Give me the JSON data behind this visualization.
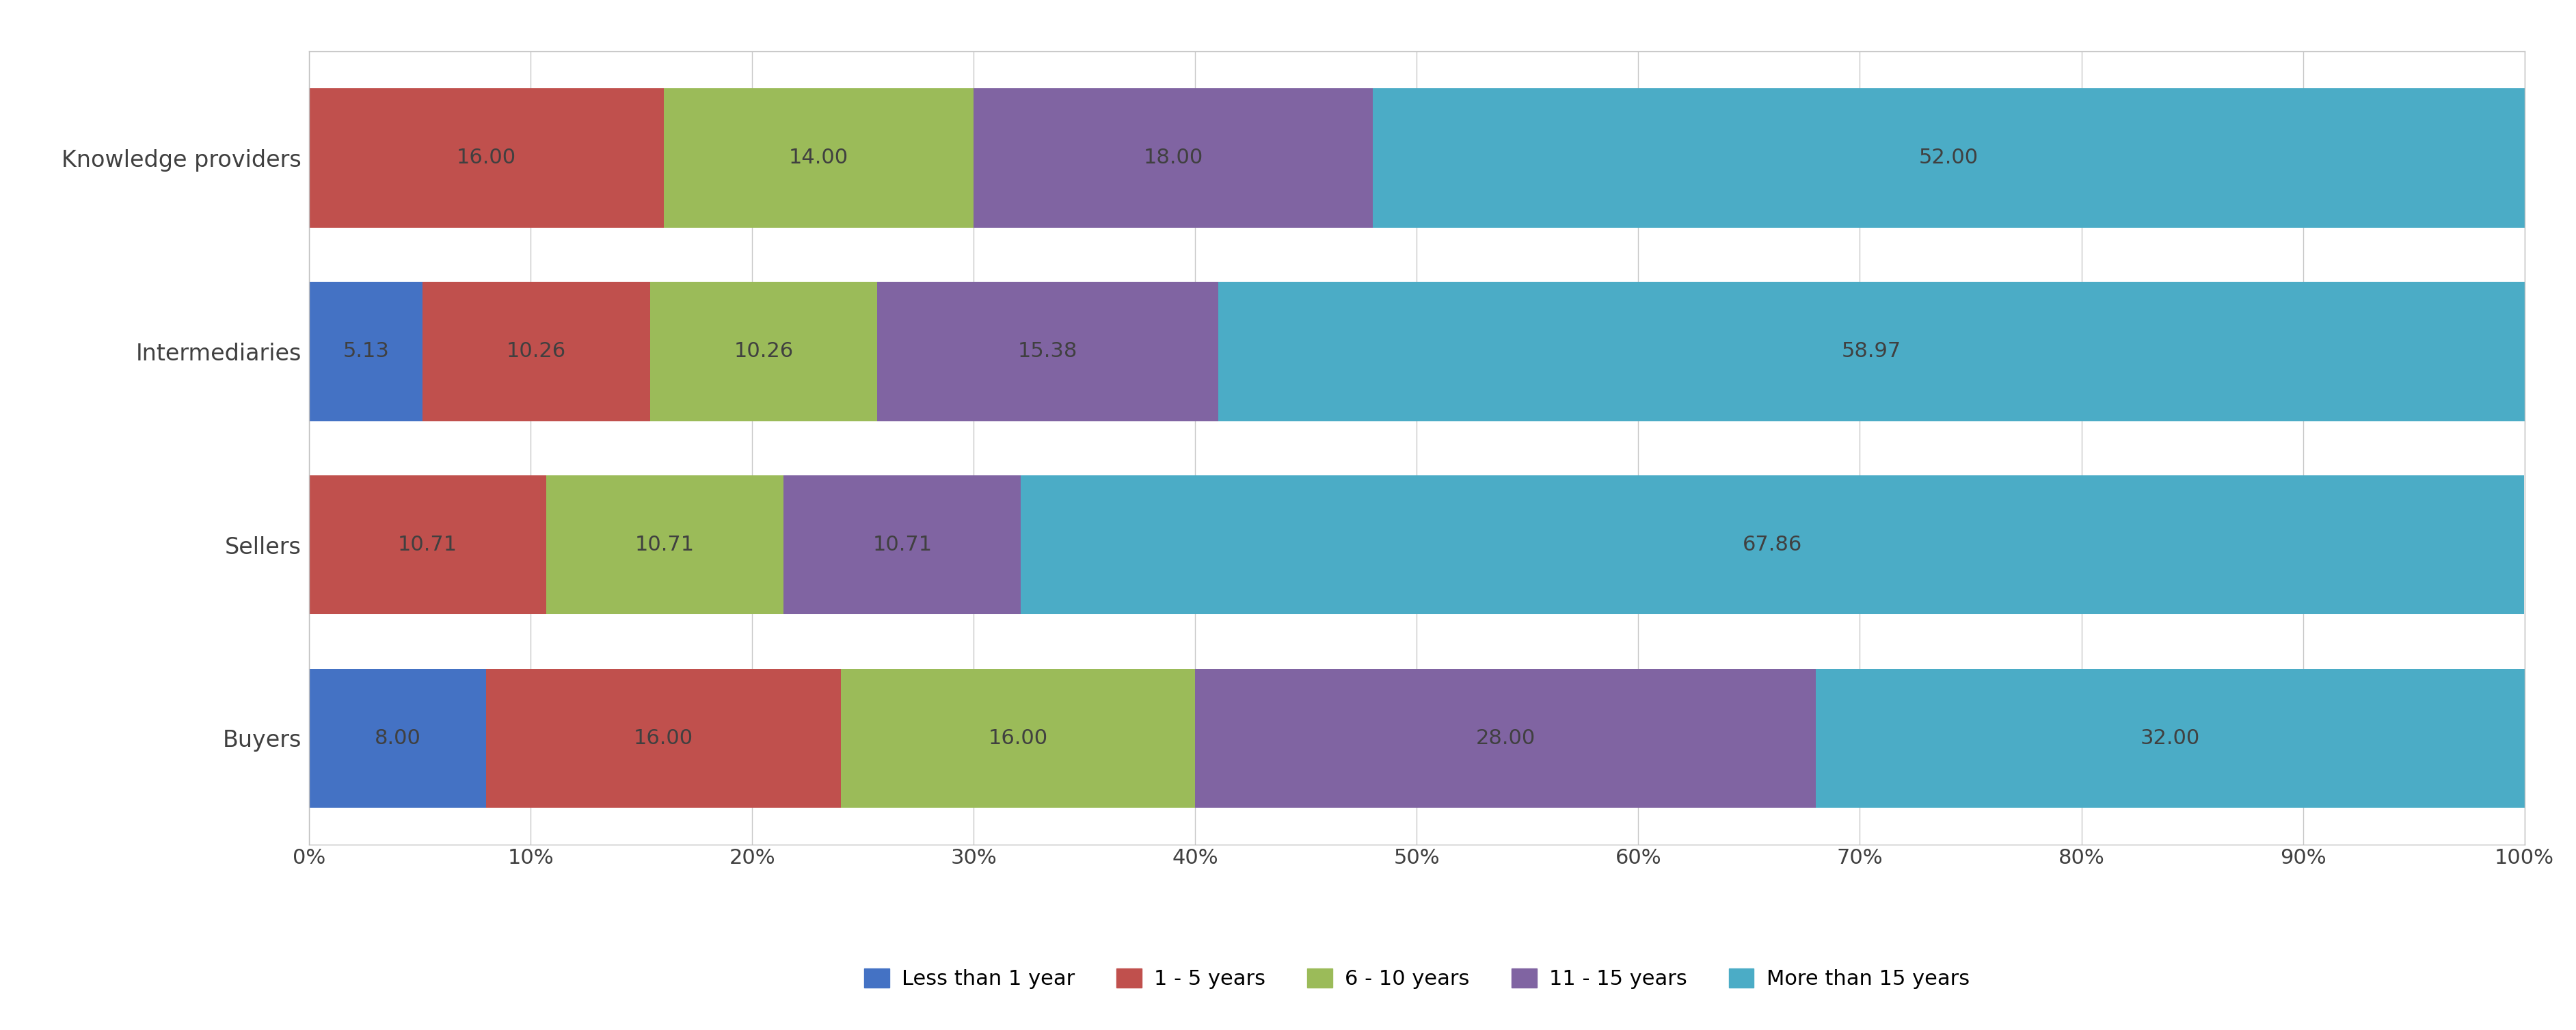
{
  "categories": [
    "Buyers",
    "Sellers",
    "Intermediaries",
    "Knowledge providers"
  ],
  "series": [
    {
      "label": "Less than 1 year",
      "color": "#4472C4",
      "values": [
        8.0,
        0.0,
        5.13,
        0.0
      ]
    },
    {
      "label": "1 - 5 years",
      "color": "#C0504D",
      "values": [
        16.0,
        10.71,
        10.26,
        16.0
      ]
    },
    {
      "label": "6 - 10 years",
      "color": "#9BBB59",
      "values": [
        16.0,
        10.71,
        10.26,
        14.0
      ]
    },
    {
      "label": "11 - 15 years",
      "color": "#8064A2",
      "values": [
        28.0,
        10.71,
        15.38,
        18.0
      ]
    },
    {
      "label": "More than 15 years",
      "color": "#4BACC6",
      "values": [
        32.0,
        67.86,
        58.97,
        52.0
      ]
    }
  ],
  "xlim": [
    0,
    100
  ],
  "xtick_labels": [
    "0%",
    "10%",
    "20%",
    "30%",
    "40%",
    "50%",
    "60%",
    "70%",
    "80%",
    "90%",
    "100%"
  ],
  "xtick_values": [
    0,
    10,
    20,
    30,
    40,
    50,
    60,
    70,
    80,
    90,
    100
  ],
  "bar_height": 0.72,
  "background_color": "#FFFFFF",
  "plot_bg_color": "#FFFFFF",
  "grid_color": "#C8C8C8",
  "text_color": "#404040",
  "border_color": "#C0C0C0",
  "legend_fontsize": 22,
  "tick_fontsize": 22,
  "label_fontsize": 24,
  "value_fontsize": 22
}
